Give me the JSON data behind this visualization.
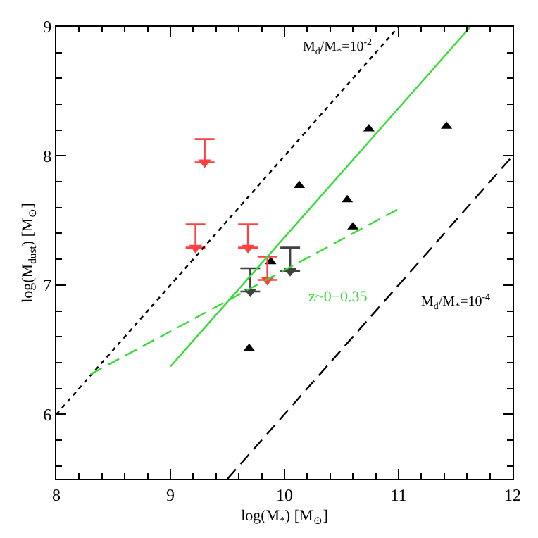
{
  "chart_data": {
    "type": "scatter",
    "xlabel": "log(M$_{*}$) [M$_{⊙}$]",
    "ylabel": "log(M$_{dust}$) [M$_{⊙}$]",
    "xlim": [
      8,
      12
    ],
    "ylim": [
      5.5,
      9
    ],
    "xticks": [
      8,
      9,
      10,
      11,
      12
    ],
    "yticks": [
      6,
      7,
      8,
      9
    ],
    "legend": false,
    "series": [
      {
        "marker": "triangle",
        "color": "#000000",
        "x": [
          10.13,
          10.74,
          11.42,
          10.55,
          10.6,
          9.88,
          9.69
        ],
        "values": [
          7.77,
          8.21,
          8.23,
          7.66,
          7.45,
          7.18,
          6.51
        ]
      },
      {
        "color": "#ff4040",
        "x": [
          9.3,
          9.22,
          9.68,
          9.85
        ],
        "values": [
          7.95,
          7.29,
          7.29,
          7.04
        ],
        "errors": [
          [
            7.95,
            8.13
          ],
          [
            7.29,
            7.47
          ],
          [
            7.29,
            7.47
          ],
          [
            7.04,
            7.22
          ]
        ]
      },
      {
        "color": "#404040",
        "x": [
          9.7,
          10.05
        ],
        "values": [
          6.95,
          7.11
        ],
        "errors": [
          [
            6.95,
            7.13
          ],
          [
            7.11,
            7.29
          ]
        ]
      },
      {
        "type": "line",
        "line_style": "dotted",
        "color": "#000000",
        "x": [
          8,
          11
        ],
        "values": [
          6,
          9
        ]
      },
      {
        "type": "line",
        "line_style": "dashed",
        "color": "#000000",
        "x": [
          9.5,
          12
        ],
        "values": [
          5.5,
          8
        ]
      },
      {
        "type": "line",
        "line_style": "solid",
        "color": "#33dd33",
        "x": [
          9,
          11.63
        ],
        "values": [
          6.37,
          9
        ]
      },
      {
        "type": "line",
        "line_style": "dashed",
        "color": "#33dd33",
        "name": "z~0−0.35",
        "x": [
          8.3,
          11
        ],
        "values": [
          6.31,
          7.59
        ]
      }
    ],
    "annotations": [
      "M$_{d}$/M$_{*}$=10$^{-2}$",
      "M$_{d}$/M$_{*}$=10$^{-4}$"
    ]
  }
}
